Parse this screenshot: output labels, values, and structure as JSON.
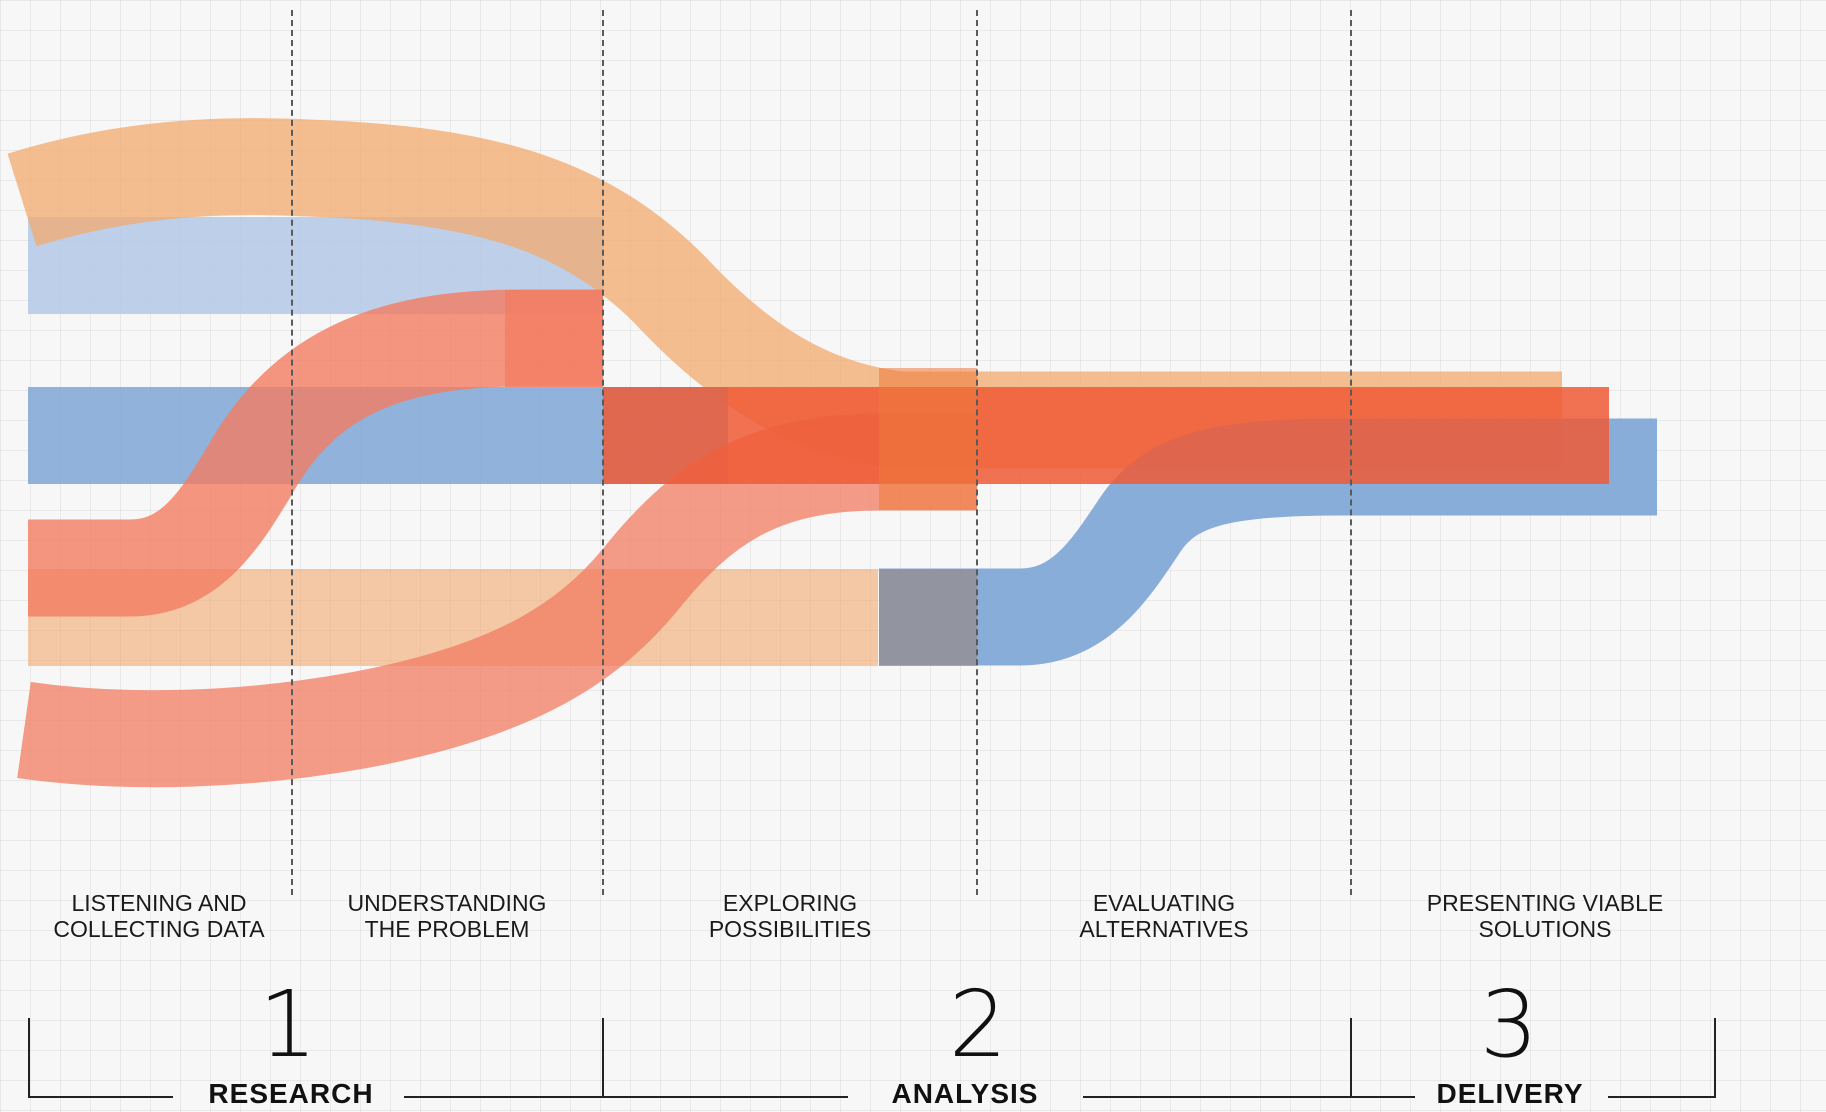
{
  "colors": {
    "peach": "#f2a96e",
    "light_blue": "#b4c9e6",
    "salmon": "#f27c62",
    "blue": "#7ea6d6",
    "orange": "#ee5a36"
  },
  "stages": [
    {
      "label": "LISTENING AND\nCOLLECTING DATA"
    },
    {
      "label": "UNDERSTANDING\nTHE PROBLEM"
    },
    {
      "label": "EXPLORING\nPOSSIBILITIES"
    },
    {
      "label": "EVALUATING\nALTERNATIVES"
    },
    {
      "label": "PRESENTING VIABLE\nSOLUTIONS"
    }
  ],
  "phases": [
    {
      "number": "1",
      "name": "RESEARCH"
    },
    {
      "number": "2",
      "name": "ANALYSIS"
    },
    {
      "number": "3",
      "name": "DELIVERY"
    }
  ]
}
